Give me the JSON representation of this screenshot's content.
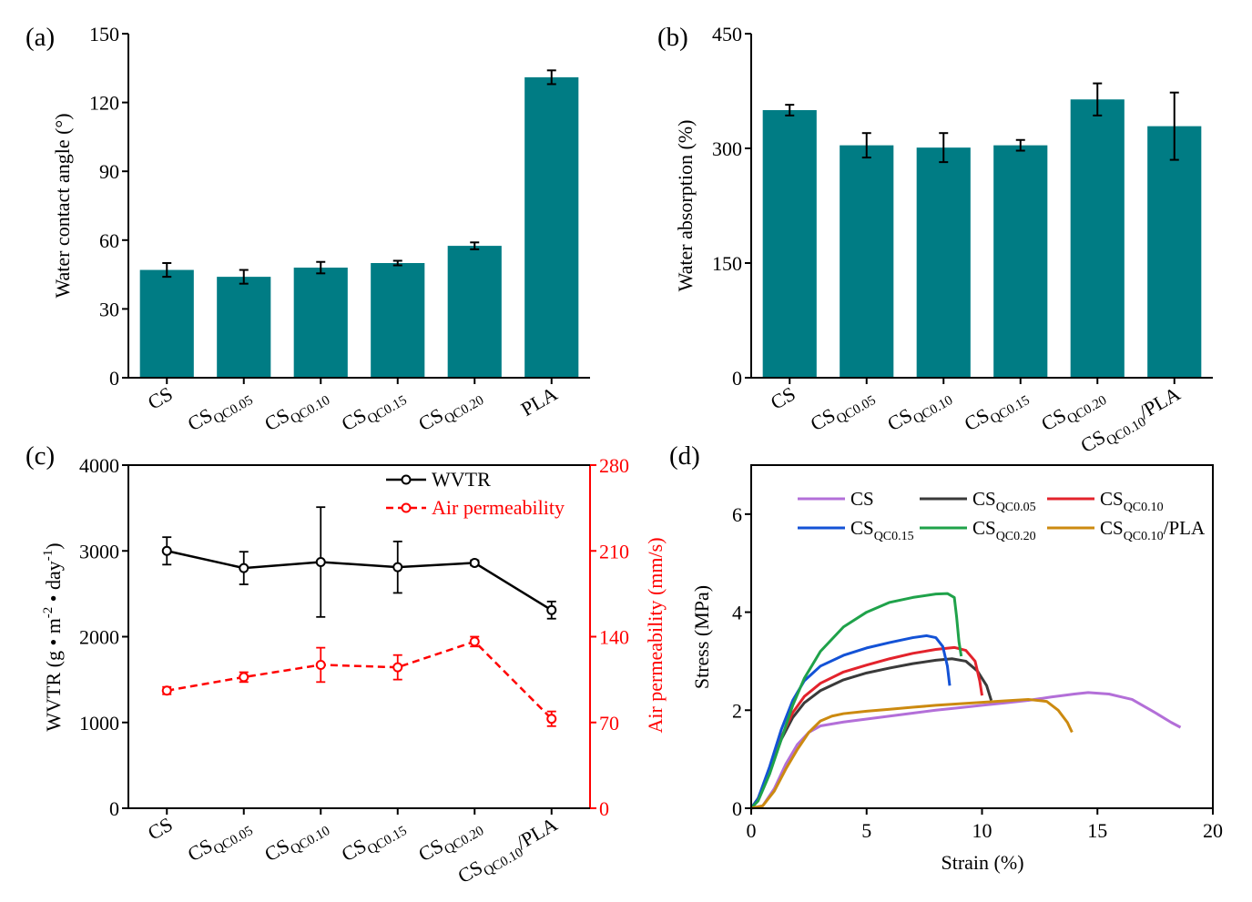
{
  "colors": {
    "bar": "#007c84",
    "axis": "#000000",
    "wvtr": "#000000",
    "air": "#ff0000",
    "CS": "#b36fd8",
    "CS_QC0.05": "#3a3a3a",
    "CS_QC0.10": "#e3232c",
    "CS_QC0.15": "#1352d6",
    "CS_QC0.20": "#1fa24a",
    "CS_QC0.10/PLA": "#cc8a10"
  },
  "chart_data": [
    {
      "panel": "(a)",
      "type": "bar",
      "ylabel": "Water contact angle (°)",
      "ylim": [
        0,
        150
      ],
      "yticks": [
        0,
        30,
        60,
        90,
        120,
        150
      ],
      "categories": [
        {
          "base": "CS",
          "sub": "",
          "tail": ""
        },
        {
          "base": "CS",
          "sub": "QC0.05",
          "tail": ""
        },
        {
          "base": "CS",
          "sub": "QC0.10",
          "tail": ""
        },
        {
          "base": "CS",
          "sub": "QC0.15",
          "tail": ""
        },
        {
          "base": "CS",
          "sub": "QC0.20",
          "tail": ""
        },
        {
          "base": "PLA",
          "sub": "",
          "tail": ""
        }
      ],
      "values": [
        47,
        44,
        48,
        50,
        57.5,
        131
      ],
      "errors": [
        3,
        3,
        2.5,
        1,
        1.5,
        3
      ]
    },
    {
      "panel": "(b)",
      "type": "bar",
      "ylabel": "Water absorption (%)",
      "ylim": [
        0,
        450
      ],
      "yticks": [
        0,
        150,
        300,
        450
      ],
      "categories": [
        {
          "base": "CS",
          "sub": "",
          "tail": ""
        },
        {
          "base": "CS",
          "sub": "QC0.05",
          "tail": ""
        },
        {
          "base": "CS",
          "sub": "QC0.10",
          "tail": ""
        },
        {
          "base": "CS",
          "sub": "QC0.15",
          "tail": ""
        },
        {
          "base": "CS",
          "sub": "QC0.20",
          "tail": ""
        },
        {
          "base": "CS",
          "sub": "QC0.10",
          "tail": "/PLA"
        }
      ],
      "values": [
        350,
        304,
        301,
        304,
        364,
        329
      ],
      "errors": [
        7,
        16,
        19,
        7,
        21,
        44
      ]
    },
    {
      "panel": "(c)",
      "type": "line",
      "ylabel_left": "WVTR (g • m-2 • day-1)",
      "ylabel_right": "Air permeability (mm/s)",
      "ylim_left": [
        0,
        4000
      ],
      "yticks_left": [
        0,
        1000,
        2000,
        3000,
        4000
      ],
      "ylim_right": [
        0,
        280
      ],
      "yticks_right": [
        0,
        70,
        140,
        210,
        280
      ],
      "categories": [
        {
          "base": "CS",
          "sub": "",
          "tail": ""
        },
        {
          "base": "CS",
          "sub": "QC0.05",
          "tail": ""
        },
        {
          "base": "CS",
          "sub": "QC0.10",
          "tail": ""
        },
        {
          "base": "CS",
          "sub": "QC0.15",
          "tail": ""
        },
        {
          "base": "CS",
          "sub": "QC0.20",
          "tail": ""
        },
        {
          "base": "CS",
          "sub": "QC0.10",
          "tail": "/PLA"
        }
      ],
      "series": [
        {
          "name": "WVTR",
          "axis": "left",
          "values": [
            3000,
            2800,
            2870,
            2810,
            2860,
            2310
          ],
          "errors": [
            160,
            190,
            640,
            300,
            30,
            100
          ]
        },
        {
          "name": "Air permeability",
          "axis": "right",
          "values": [
            96,
            107,
            117,
            115,
            136,
            73
          ],
          "errors": [
            3,
            4,
            14,
            10,
            4,
            6
          ]
        }
      ],
      "legend": "top-right"
    },
    {
      "panel": "(d)",
      "type": "line",
      "xlabel": "Strain (%)",
      "ylabel": "Stress (MPa)",
      "xlim": [
        0,
        20
      ],
      "xticks": [
        0,
        5,
        10,
        15,
        20
      ],
      "ylim": [
        0,
        7
      ],
      "yticks": [
        0,
        2,
        4,
        6
      ],
      "series": [
        {
          "name": "CS",
          "base": "CS",
          "sub": "",
          "tail": "",
          "color_key": "CS",
          "points": [
            [
              0,
              0
            ],
            [
              0.5,
              0.05
            ],
            [
              1,
              0.4
            ],
            [
              1.5,
              0.9
            ],
            [
              2,
              1.3
            ],
            [
              2.5,
              1.55
            ],
            [
              3,
              1.68
            ],
            [
              4,
              1.76
            ],
            [
              5,
              1.82
            ],
            [
              6,
              1.88
            ],
            [
              7,
              1.94
            ],
            [
              8,
              2.0
            ],
            [
              9,
              2.05
            ],
            [
              10,
              2.1
            ],
            [
              11,
              2.15
            ],
            [
              12,
              2.2
            ],
            [
              13,
              2.27
            ],
            [
              14,
              2.33
            ],
            [
              14.6,
              2.36
            ],
            [
              15.5,
              2.33
            ],
            [
              16.5,
              2.22
            ],
            [
              17.5,
              1.95
            ],
            [
              18.2,
              1.75
            ],
            [
              18.6,
              1.65
            ]
          ]
        },
        {
          "name": "CS_QC0.05",
          "base": "CS",
          "sub": "QC0.05",
          "tail": "",
          "color_key": "CS_QC0.05",
          "points": [
            [
              0,
              0
            ],
            [
              0.3,
              0.2
            ],
            [
              0.8,
              0.75
            ],
            [
              1.3,
              1.4
            ],
            [
              1.8,
              1.85
            ],
            [
              2.3,
              2.15
            ],
            [
              3,
              2.4
            ],
            [
              4,
              2.62
            ],
            [
              5,
              2.76
            ],
            [
              6,
              2.86
            ],
            [
              7,
              2.95
            ],
            [
              8,
              3.02
            ],
            [
              8.7,
              3.05
            ],
            [
              9.3,
              3.0
            ],
            [
              9.8,
              2.8
            ],
            [
              10.2,
              2.5
            ],
            [
              10.4,
              2.2
            ]
          ]
        },
        {
          "name": "CS_QC0.10",
          "base": "CS",
          "sub": "QC0.10",
          "tail": "",
          "color_key": "CS_QC0.10",
          "points": [
            [
              0,
              0
            ],
            [
              0.3,
              0.2
            ],
            [
              0.8,
              0.8
            ],
            [
              1.3,
              1.45
            ],
            [
              1.8,
              1.95
            ],
            [
              2.3,
              2.28
            ],
            [
              3,
              2.55
            ],
            [
              4,
              2.78
            ],
            [
              5,
              2.92
            ],
            [
              6,
              3.05
            ],
            [
              7,
              3.16
            ],
            [
              8,
              3.24
            ],
            [
              8.8,
              3.28
            ],
            [
              9.3,
              3.22
            ],
            [
              9.7,
              3.0
            ],
            [
              9.9,
              2.6
            ],
            [
              10,
              2.3
            ]
          ]
        },
        {
          "name": "CS_QC0.15",
          "base": "CS",
          "sub": "QC0.15",
          "tail": "",
          "color_key": "CS_QC0.15",
          "points": [
            [
              0,
              0
            ],
            [
              0.3,
              0.2
            ],
            [
              0.8,
              0.85
            ],
            [
              1.3,
              1.6
            ],
            [
              1.8,
              2.2
            ],
            [
              2.3,
              2.6
            ],
            [
              3,
              2.9
            ],
            [
              4,
              3.12
            ],
            [
              5,
              3.27
            ],
            [
              6,
              3.38
            ],
            [
              7,
              3.48
            ],
            [
              7.6,
              3.52
            ],
            [
              8,
              3.48
            ],
            [
              8.3,
              3.3
            ],
            [
              8.5,
              2.9
            ],
            [
              8.6,
              2.5
            ]
          ]
        },
        {
          "name": "CS_QC0.20",
          "base": "CS",
          "sub": "QC0.20",
          "tail": "",
          "color_key": "CS_QC0.20",
          "points": [
            [
              0,
              0
            ],
            [
              0.3,
              0.15
            ],
            [
              0.8,
              0.7
            ],
            [
              1.3,
              1.4
            ],
            [
              1.8,
              2.1
            ],
            [
              2.3,
              2.65
            ],
            [
              3,
              3.2
            ],
            [
              4,
              3.7
            ],
            [
              5,
              4.0
            ],
            [
              6,
              4.2
            ],
            [
              7,
              4.3
            ],
            [
              8,
              4.37
            ],
            [
              8.5,
              4.38
            ],
            [
              8.8,
              4.3
            ],
            [
              8.9,
              3.9
            ],
            [
              9,
              3.4
            ],
            [
              9.1,
              3.1
            ]
          ]
        },
        {
          "name": "CS_QC0.10/PLA",
          "base": "CS",
          "sub": "QC0.10",
          "tail": "/PLA",
          "color_key": "CS_QC0.10/PLA",
          "points": [
            [
              0,
              0
            ],
            [
              0.5,
              0.05
            ],
            [
              1,
              0.35
            ],
            [
              1.5,
              0.8
            ],
            [
              2,
              1.2
            ],
            [
              2.5,
              1.55
            ],
            [
              3,
              1.78
            ],
            [
              3.5,
              1.88
            ],
            [
              4,
              1.93
            ],
            [
              5,
              1.98
            ],
            [
              6,
              2.02
            ],
            [
              7,
              2.06
            ],
            [
              8,
              2.1
            ],
            [
              9,
              2.13
            ],
            [
              10,
              2.16
            ],
            [
              11,
              2.19
            ],
            [
              12,
              2.22
            ],
            [
              12.8,
              2.18
            ],
            [
              13.3,
              2.0
            ],
            [
              13.7,
              1.75
            ],
            [
              13.9,
              1.55
            ]
          ]
        }
      ],
      "legend": "top"
    }
  ]
}
